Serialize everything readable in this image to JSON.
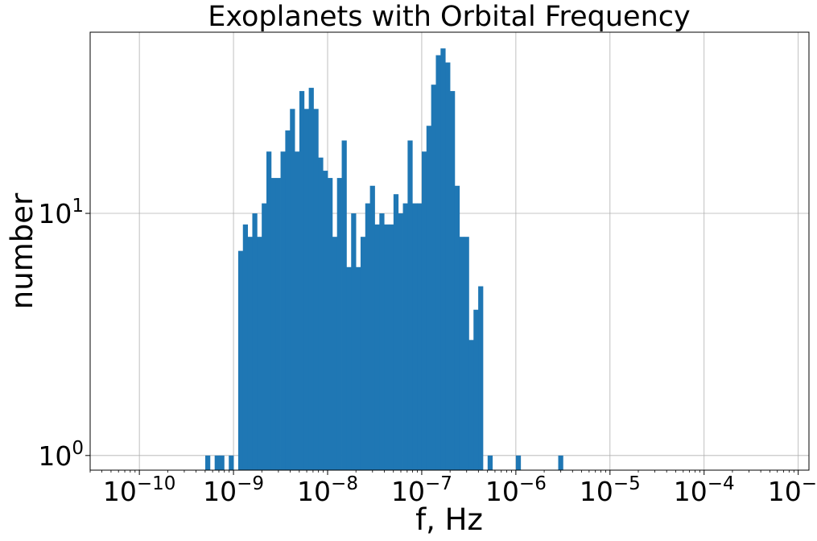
{
  "chart_data": {
    "type": "bar",
    "title": "Exoplanets with Orbital Frequency",
    "xlabel": "f, Hz",
    "ylabel": "number",
    "x_scale": "log",
    "y_scale": "log",
    "xlim": [
      3e-11,
      0.0013
    ],
    "ylim": [
      0.87,
      56
    ],
    "grid": true,
    "color": "#1f77b4",
    "x_ticks": [
      {
        "base": "10",
        "exp": "−10",
        "value": 1e-10
      },
      {
        "base": "10",
        "exp": "−9",
        "value": 1e-09
      },
      {
        "base": "10",
        "exp": "−8",
        "value": 1e-08
      },
      {
        "base": "10",
        "exp": "−7",
        "value": 1e-07
      },
      {
        "base": "10",
        "exp": "−6",
        "value": 1e-06
      },
      {
        "base": "10",
        "exp": "−5",
        "value": 1e-05
      },
      {
        "base": "10",
        "exp": "−4",
        "value": 0.0001
      },
      {
        "base": "10",
        "exp": "−3",
        "value": 0.001
      }
    ],
    "y_ticks": [
      {
        "base": "10",
        "exp": "0",
        "value": 1
      },
      {
        "base": "10",
        "exp": "1",
        "value": 10
      }
    ],
    "bin_log10_start": -9.3,
    "bin_log10_width": 0.05,
    "values": [
      1,
      0,
      1,
      1,
      0,
      1,
      0,
      7,
      9,
      8,
      10,
      8,
      11,
      18,
      14,
      14,
      18,
      22,
      27,
      18,
      32,
      27,
      33,
      27,
      17,
      15,
      14,
      8,
      14,
      20,
      6,
      10,
      6,
      8,
      11,
      13,
      9,
      10,
      9,
      9,
      12,
      10,
      11,
      20,
      11,
      11,
      18,
      23,
      34,
      45,
      48,
      42,
      32,
      13,
      8,
      8,
      3,
      4,
      5,
      0,
      1,
      0,
      0,
      0,
      0,
      0,
      1,
      0,
      0,
      0,
      0,
      0,
      0,
      0,
      0,
      1
    ]
  }
}
